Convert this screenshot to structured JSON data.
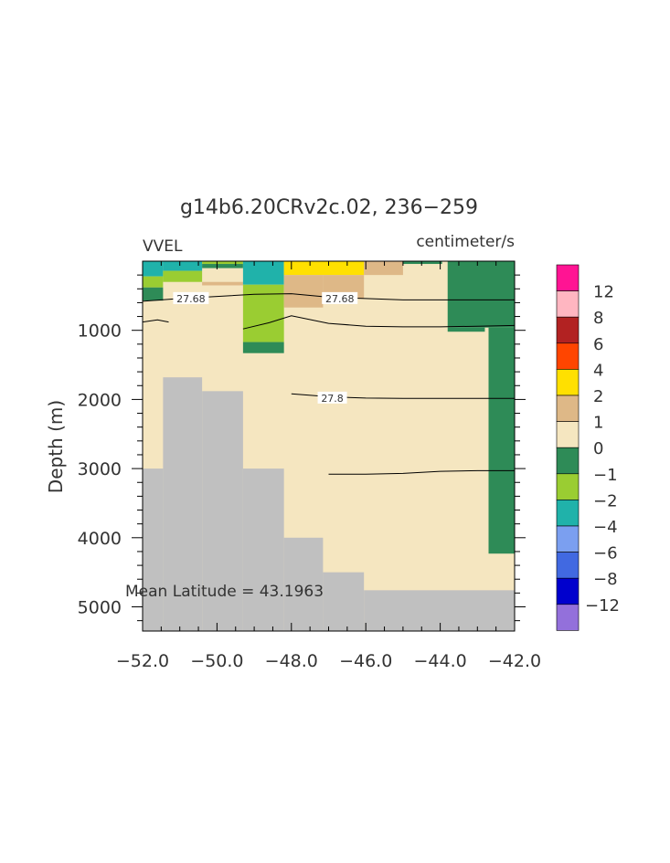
{
  "chart_data": {
    "type": "heatmap",
    "title": "g14b6.20CRv2c.02, 236−259",
    "variable_label": "VVEL",
    "units_label": "centimeter/s",
    "ylabel": "Depth (m)",
    "annotation": "Mean Latitude = 43.1963",
    "xlim": [
      -52.0,
      -42.0
    ],
    "ylim": [
      5350,
      0
    ],
    "x_ticks": [
      -52.0,
      -50.0,
      -48.0,
      -46.0,
      -44.0,
      -42.0
    ],
    "x_tick_labels": [
      "−52.0",
      "−50.0",
      "−48.0",
      "−46.0",
      "−44.0",
      "−42.0"
    ],
    "y_ticks": [
      1000,
      2000,
      3000,
      4000,
      5000
    ],
    "y_tick_labels": [
      "1000",
      "2000",
      "3000",
      "4000",
      "5000"
    ],
    "colorbar": {
      "labels": [
        "12",
        "8",
        "6",
        "4",
        "2",
        "1",
        "0",
        "−1",
        "−2",
        "−4",
        "−6",
        "−8",
        "−12"
      ],
      "colors": [
        "#ff1493",
        "#ffb6c1",
        "#b22222",
        "#ff4500",
        "#ffe000",
        "#deb887",
        "#f5e6c0",
        "#2e8b57",
        "#9acd32",
        "#20b2aa",
        "#7b9ff0",
        "#4169e1",
        "#0000cd",
        "#9370db"
      ]
    },
    "background_color": "#f5e6c0",
    "land_color": "#c0c0c0",
    "cells": [
      {
        "x": [
          -52.0,
          -51.45
        ],
        "y": [
          0,
          220
        ],
        "color": "#20b2aa"
      },
      {
        "x": [
          -52.0,
          -51.45
        ],
        "y": [
          220,
          380
        ],
        "color": "#9acd32"
      },
      {
        "x": [
          -52.0,
          -51.45
        ],
        "y": [
          380,
          570
        ],
        "color": "#2e8b57"
      },
      {
        "x": [
          -51.45,
          -50.4
        ],
        "y": [
          0,
          140
        ],
        "color": "#20b2aa"
      },
      {
        "x": [
          -51.45,
          -50.4
        ],
        "y": [
          140,
          300
        ],
        "color": "#9acd32"
      },
      {
        "x": [
          -50.4,
          -49.3
        ],
        "y": [
          0,
          40
        ],
        "color": "#9acd32"
      },
      {
        "x": [
          -50.4,
          -49.3
        ],
        "y": [
          40,
          100
        ],
        "color": "#2e8b57"
      },
      {
        "x": [
          -50.4,
          -49.3
        ],
        "y": [
          300,
          350
        ],
        "color": "#deb887"
      },
      {
        "x": [
          -49.3,
          -48.2
        ],
        "y": [
          0,
          340
        ],
        "color": "#20b2aa"
      },
      {
        "x": [
          -49.3,
          -48.2
        ],
        "y": [
          340,
          1170
        ],
        "color": "#9acd32"
      },
      {
        "x": [
          -49.3,
          -48.2
        ],
        "y": [
          1170,
          1330
        ],
        "color": "#2e8b57"
      },
      {
        "x": [
          -48.2,
          -46.05
        ],
        "y": [
          0,
          200
        ],
        "color": "#ffe000"
      },
      {
        "x": [
          -48.2,
          -47.15
        ],
        "y": [
          200,
          670
        ],
        "color": "#deb887"
      },
      {
        "x": [
          -47.15,
          -46.05
        ],
        "y": [
          200,
          540
        ],
        "color": "#deb887"
      },
      {
        "x": [
          -46.05,
          -45.0
        ],
        "y": [
          0,
          200
        ],
        "color": "#deb887"
      },
      {
        "x": [
          -45.0,
          -43.95
        ],
        "y": [
          0,
          40
        ],
        "color": "#2e8b57"
      },
      {
        "x": [
          -43.8,
          -42.0
        ],
        "y": [
          0,
          960
        ],
        "color": "#2e8b57"
      },
      {
        "x": [
          -43.8,
          -42.8
        ],
        "y": [
          960,
          1020
        ],
        "color": "#2e8b57"
      },
      {
        "x": [
          -42.7,
          -42.0
        ],
        "y": [
          960,
          4230
        ],
        "color": "#2e8b57"
      }
    ],
    "land": [
      {
        "x": [
          -52.0,
          -51.45
        ],
        "y": [
          3000,
          5350
        ]
      },
      {
        "x": [
          -51.45,
          -50.4
        ],
        "y": [
          1680,
          5350
        ]
      },
      {
        "x": [
          -50.4,
          -49.3
        ],
        "y": [
          1880,
          5350
        ]
      },
      {
        "x": [
          -49.3,
          -48.2
        ],
        "y": [
          3000,
          5350
        ]
      },
      {
        "x": [
          -48.2,
          -47.15
        ],
        "y": [
          4000,
          5350
        ]
      },
      {
        "x": [
          -47.15,
          -46.05
        ],
        "y": [
          4500,
          5350
        ]
      },
      {
        "x": [
          -46.05,
          -42.0
        ],
        "y": [
          4760,
          5350
        ]
      }
    ],
    "contours": [
      {
        "label": "27.68",
        "label_at": [
          -50.7,
          540
        ],
        "points": [
          [
            -52.0,
            580
          ],
          [
            -51.0,
            540
          ],
          [
            -50.0,
            510
          ],
          [
            -49.0,
            480
          ],
          [
            -48.0,
            470
          ],
          [
            -47.0,
            520
          ],
          [
            -46.0,
            540
          ],
          [
            -45.0,
            560
          ],
          [
            -44.0,
            560
          ],
          [
            -43.0,
            560
          ],
          [
            -42.0,
            560
          ]
        ]
      },
      {
        "label": "27.68",
        "label_at": [
          -46.7,
          540
        ],
        "points": []
      },
      {
        "label": "",
        "label_at": null,
        "points": [
          [
            -52.0,
            880
          ],
          [
            -51.6,
            850
          ],
          [
            -51.3,
            880
          ]
        ]
      },
      {
        "label": "",
        "label_at": null,
        "points": [
          [
            -49.3,
            980
          ],
          [
            -48.6,
            890
          ],
          [
            -48.0,
            790
          ],
          [
            -47.0,
            900
          ],
          [
            -46.0,
            940
          ],
          [
            -45.0,
            950
          ],
          [
            -44.0,
            950
          ],
          [
            -43.0,
            940
          ],
          [
            -42.0,
            930
          ]
        ]
      },
      {
        "label": "27.8",
        "label_at": [
          -46.9,
          1980
        ],
        "points": [
          [
            -48.0,
            1920
          ],
          [
            -47.0,
            1960
          ],
          [
            -46.0,
            1980
          ],
          [
            -45.0,
            1985
          ],
          [
            -44.0,
            1985
          ],
          [
            -43.0,
            1985
          ],
          [
            -42.0,
            1985
          ]
        ]
      },
      {
        "label": "",
        "label_at": null,
        "points": [
          [
            -47.0,
            3080
          ],
          [
            -46.0,
            3080
          ],
          [
            -45.0,
            3070
          ],
          [
            -44.0,
            3040
          ],
          [
            -43.0,
            3030
          ],
          [
            -42.0,
            3030
          ]
        ]
      }
    ]
  }
}
